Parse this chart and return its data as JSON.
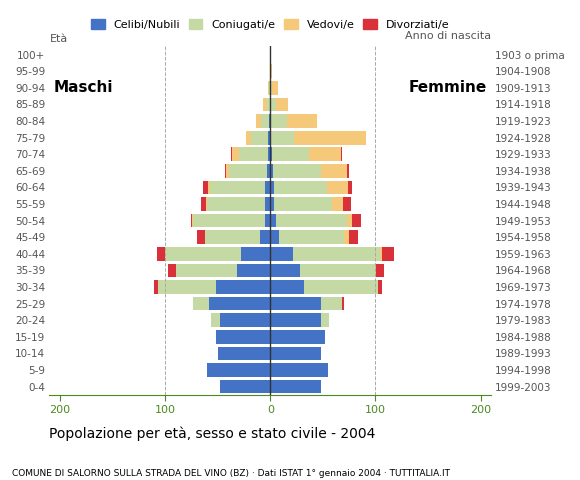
{
  "age_groups": [
    "0-4",
    "5-9",
    "10-14",
    "15-19",
    "20-24",
    "25-29",
    "30-34",
    "35-39",
    "40-44",
    "45-49",
    "50-54",
    "55-59",
    "60-64",
    "65-69",
    "70-74",
    "75-79",
    "80-84",
    "85-89",
    "90-94",
    "95-99",
    "100+"
  ],
  "birth_years": [
    "1999-2003",
    "1994-1998",
    "1989-1993",
    "1984-1988",
    "1979-1983",
    "1974-1978",
    "1969-1973",
    "1964-1968",
    "1959-1963",
    "1954-1958",
    "1949-1953",
    "1944-1948",
    "1939-1943",
    "1934-1938",
    "1929-1933",
    "1924-1928",
    "1919-1923",
    "1914-1918",
    "1909-1913",
    "1904-1908",
    "1903 o prima"
  ],
  "male": {
    "celibi": [
      48,
      60,
      50,
      52,
      48,
      58,
      52,
      32,
      28,
      10,
      5,
      5,
      5,
      3,
      2,
      2,
      1,
      0,
      0,
      0,
      0
    ],
    "coniugati": [
      0,
      0,
      0,
      0,
      8,
      15,
      55,
      58,
      72,
      52,
      68,
      55,
      52,
      36,
      28,
      16,
      8,
      3,
      1,
      0,
      0
    ],
    "vedovi": [
      0,
      0,
      0,
      0,
      0,
      0,
      0,
      0,
      0,
      0,
      1,
      1,
      2,
      3,
      6,
      5,
      5,
      4,
      1,
      0,
      0
    ],
    "divorziati": [
      0,
      0,
      0,
      0,
      0,
      0,
      4,
      7,
      8,
      8,
      1,
      5,
      5,
      1,
      1,
      0,
      0,
      0,
      0,
      0,
      0
    ]
  },
  "female": {
    "nubili": [
      48,
      55,
      48,
      52,
      48,
      48,
      32,
      28,
      22,
      8,
      5,
      4,
      4,
      3,
      2,
      1,
      1,
      0,
      0,
      0,
      0
    ],
    "coniugate": [
      0,
      0,
      0,
      0,
      8,
      20,
      70,
      72,
      82,
      62,
      68,
      55,
      50,
      45,
      35,
      22,
      15,
      5,
      2,
      0,
      0
    ],
    "vedove": [
      0,
      0,
      0,
      0,
      0,
      0,
      0,
      1,
      2,
      5,
      5,
      10,
      20,
      25,
      30,
      68,
      28,
      12,
      5,
      2,
      0
    ],
    "divorziate": [
      0,
      0,
      0,
      0,
      0,
      2,
      4,
      7,
      12,
      8,
      8,
      8,
      4,
      2,
      1,
      0,
      0,
      0,
      0,
      0,
      0
    ]
  },
  "colors": {
    "celibi": "#4472c4",
    "coniugati": "#c5d9a4",
    "vedovi": "#f5c87a",
    "divorziati": "#d9303a"
  },
  "xlim": 210,
  "xlabel": "Popolazione per età, sesso e stato civile - 2004",
  "subtitle": "COMUNE DI SALORNO SULLA STRADA DEL VINO (BZ) · Dati ISTAT 1° gennaio 2004 · TUTTITALIA.IT",
  "ylabel_left": "Età",
  "ylabel_right": "Anno di nascita",
  "label_maschi": "Maschi",
  "label_femmine": "Femmine",
  "legend_labels": [
    "Celibi/Nubili",
    "Coniugati/e",
    "Vedovi/e",
    "Divorziati/e"
  ]
}
